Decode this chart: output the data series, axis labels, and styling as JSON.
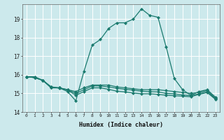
{
  "xlabel": "Humidex (Indice chaleur)",
  "ylabel": "",
  "background_color": "#cce9ec",
  "grid_color": "#ffffff",
  "line_color": "#1a7a6e",
  "xlim": [
    -0.5,
    23.5
  ],
  "ylim": [
    14,
    19.8
  ],
  "yticks": [
    14,
    15,
    16,
    17,
    18,
    19
  ],
  "xticks": [
    0,
    1,
    2,
    3,
    4,
    5,
    6,
    7,
    8,
    9,
    10,
    11,
    12,
    13,
    14,
    15,
    16,
    17,
    18,
    19,
    20,
    21,
    22,
    23
  ],
  "xtick_labels": [
    "0",
    "1",
    "2",
    "3",
    "4",
    "5",
    "6",
    "7",
    "8",
    "9",
    "10",
    "11",
    "12",
    "13",
    "14",
    "15",
    "16",
    "17",
    "18",
    "19",
    "20",
    "21",
    "22",
    "23"
  ],
  "series": [
    {
      "x": [
        0,
        1,
        2,
        3,
        4,
        5,
        6,
        7,
        8,
        9,
        10,
        11,
        12,
        13,
        14,
        15,
        16,
        17,
        18,
        19,
        20,
        21,
        22,
        23
      ],
      "y": [
        15.9,
        15.9,
        15.7,
        15.3,
        15.3,
        15.1,
        14.6,
        16.2,
        17.6,
        17.9,
        18.5,
        18.8,
        18.8,
        19.0,
        19.55,
        19.2,
        19.1,
        17.5,
        15.8,
        15.2,
        14.9,
        15.1,
        15.2,
        14.8
      ]
    },
    {
      "x": [
        0,
        1,
        2,
        3,
        4,
        5,
        6,
        7,
        8,
        9,
        10,
        11,
        12,
        13,
        14,
        15,
        16,
        17,
        18,
        19,
        20,
        21,
        22,
        23
      ],
      "y": [
        15.9,
        15.85,
        15.7,
        15.3,
        15.3,
        15.2,
        15.1,
        15.3,
        15.45,
        15.45,
        15.45,
        15.35,
        15.3,
        15.25,
        15.2,
        15.2,
        15.2,
        15.15,
        15.1,
        15.05,
        15.0,
        15.05,
        15.15,
        14.75
      ]
    },
    {
      "x": [
        0,
        1,
        2,
        3,
        4,
        5,
        6,
        7,
        8,
        9,
        10,
        11,
        12,
        13,
        14,
        15,
        16,
        17,
        18,
        19,
        20,
        21,
        22,
        23
      ],
      "y": [
        15.9,
        15.85,
        15.7,
        15.35,
        15.3,
        15.2,
        15.0,
        15.2,
        15.4,
        15.4,
        15.35,
        15.28,
        15.22,
        15.18,
        15.12,
        15.1,
        15.08,
        15.0,
        14.98,
        14.92,
        14.88,
        14.98,
        15.08,
        14.72
      ]
    },
    {
      "x": [
        0,
        1,
        2,
        3,
        4,
        5,
        6,
        7,
        8,
        9,
        10,
        11,
        12,
        13,
        14,
        15,
        16,
        17,
        18,
        19,
        20,
        21,
        22,
        23
      ],
      "y": [
        15.9,
        15.85,
        15.7,
        15.35,
        15.28,
        15.18,
        14.9,
        15.1,
        15.3,
        15.3,
        15.22,
        15.12,
        15.08,
        15.02,
        14.98,
        14.98,
        14.95,
        14.9,
        14.88,
        14.85,
        14.82,
        14.95,
        15.05,
        14.68
      ]
    }
  ]
}
